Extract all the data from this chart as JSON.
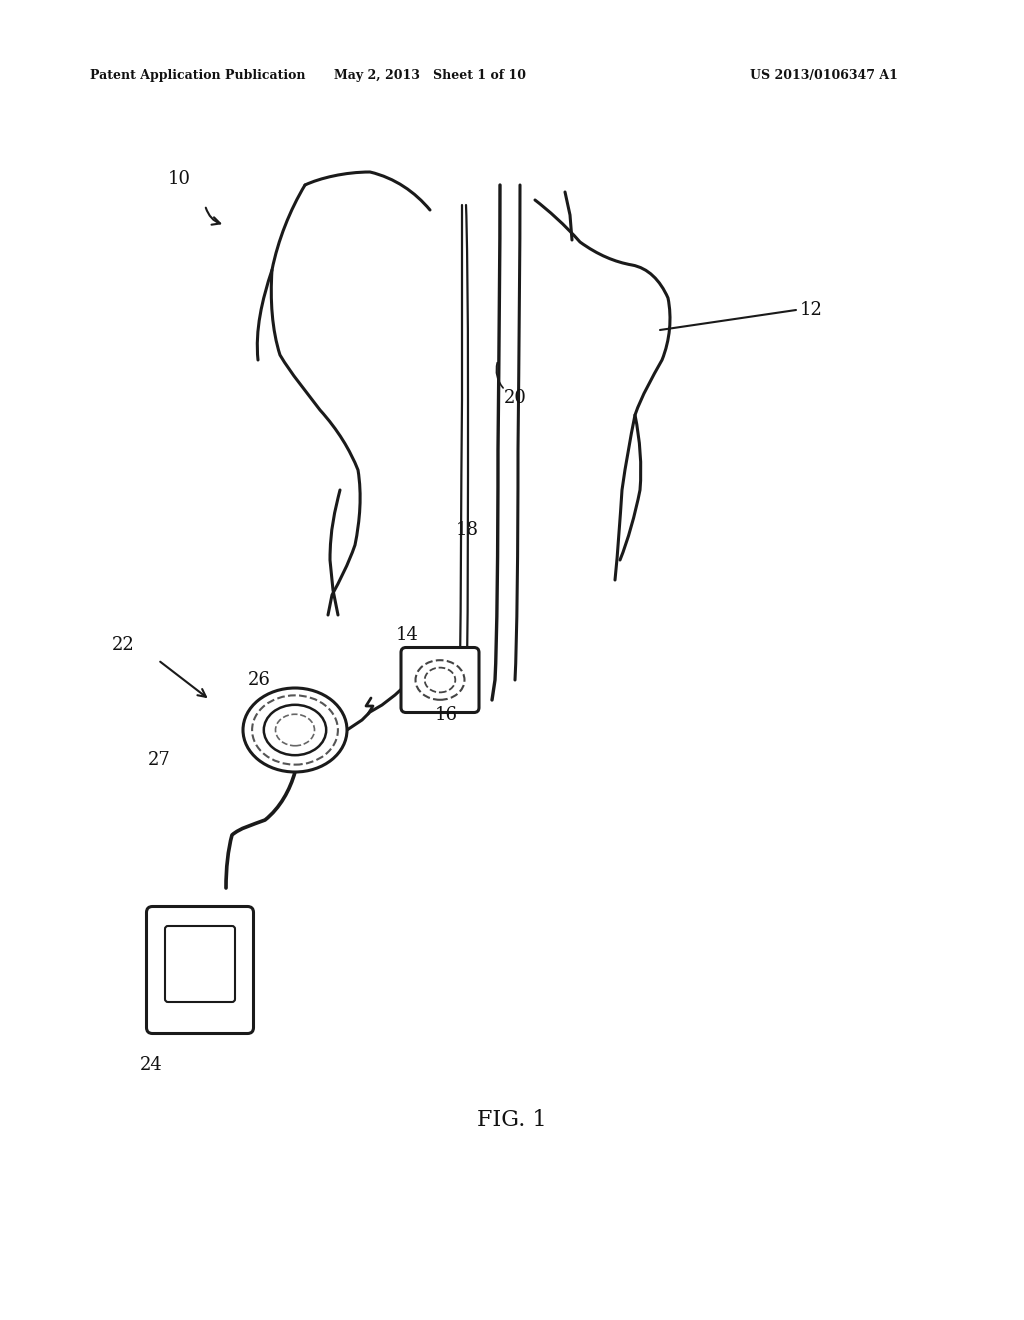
{
  "background_color": "#ffffff",
  "header_left": "Patent Application Publication",
  "header_mid": "May 2, 2013   Sheet 1 of 10",
  "header_right": "US 2013/0106347 A1",
  "fig_label": "FIG. 1",
  "line_color": "#1a1a1a",
  "line_width": 2.2
}
